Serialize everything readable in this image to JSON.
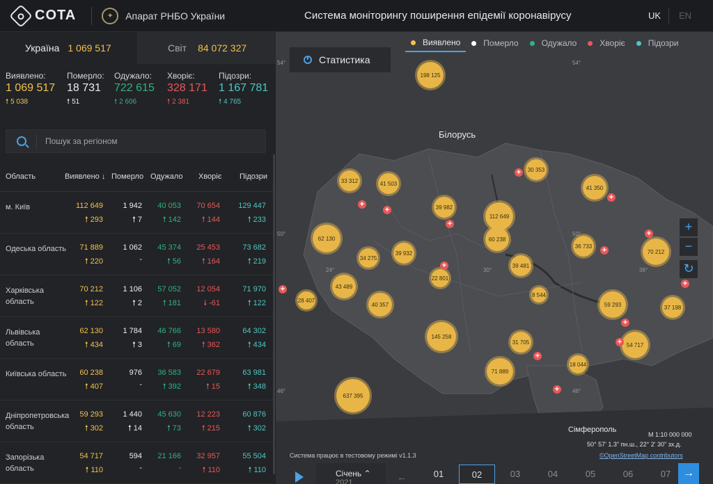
{
  "header": {
    "logo_text": "COTA",
    "org_name": "Апарат РНБО України",
    "system_title": "Система моніторингу поширення епідемії коронавірусу",
    "lang_uk": "UK",
    "lang_en": "EN"
  },
  "totals": {
    "ukraine_label": "Україна",
    "ukraine_value": "1 069 517",
    "world_label": "Світ",
    "world_value": "84 072 327"
  },
  "stats": [
    {
      "label": "Виявлено:",
      "value": "1 069 517",
      "delta": "5 038",
      "color": "yellow"
    },
    {
      "label": "Померло:",
      "value": "18 731",
      "delta": "51",
      "color": "white"
    },
    {
      "label": "Одужало:",
      "value": "722 615",
      "delta": "2 606",
      "color": "green"
    },
    {
      "label": "Хворіє:",
      "value": "328 171",
      "delta": "2 381",
      "color": "red"
    },
    {
      "label": "Підозри:",
      "value": "1 167 781",
      "delta": "4 765",
      "color": "cyan"
    }
  ],
  "search": {
    "placeholder": "Пошук за регіоном"
  },
  "table": {
    "headers": [
      "Область",
      "Виявлено ↓",
      "Померло",
      "Одужало",
      "Хворіє",
      "Підозри"
    ],
    "rows": [
      {
        "region": "м. Київ",
        "det": "112 649",
        "det_d": "293",
        "died": "1 942",
        "died_d": "7",
        "rec": "40 053",
        "rec_d": "142",
        "sick": "70 654",
        "sick_d": "144",
        "susp": "129 447",
        "susp_d": "233"
      },
      {
        "region": "Одеська область",
        "det": "71 889",
        "det_d": "220",
        "died": "1 062",
        "died_d": "-",
        "rec": "45 374",
        "rec_d": "56",
        "sick": "25 453",
        "sick_d": "164",
        "susp": "73 682",
        "susp_d": "219"
      },
      {
        "region": "Харківська область",
        "det": "70 212",
        "det_d": "122",
        "died": "1 106",
        "died_d": "2",
        "rec": "57 052",
        "rec_d": "181",
        "sick": "12 054",
        "sick_d": "-61",
        "susp": "71 970",
        "susp_d": "122"
      },
      {
        "region": "Львівська область",
        "det": "62 130",
        "det_d": "434",
        "died": "1 784",
        "died_d": "3",
        "rec": "46 766",
        "rec_d": "69",
        "sick": "13 580",
        "sick_d": "362",
        "susp": "64 302",
        "susp_d": "434"
      },
      {
        "region": "Київська область",
        "det": "60 238",
        "det_d": "407",
        "died": "976",
        "died_d": "-",
        "rec": "36 583",
        "rec_d": "392",
        "sick": "22 679",
        "sick_d": "15",
        "susp": "63 981",
        "susp_d": "348"
      },
      {
        "region": "Дніпропетровська область",
        "det": "59 293",
        "det_d": "302",
        "died": "1 440",
        "died_d": "14",
        "rec": "45 630",
        "rec_d": "73",
        "sick": "12 223",
        "sick_d": "215",
        "susp": "60 876",
        "susp_d": "302"
      },
      {
        "region": "Запорізька область",
        "det": "54 717",
        "det_d": "110",
        "died": "594",
        "died_d": "-",
        "rec": "21 166",
        "rec_d": "-",
        "sick": "32 957",
        "sick_d": "110",
        "susp": "55 504",
        "susp_d": "110"
      }
    ]
  },
  "map": {
    "stat_button": "Статистика",
    "legend": [
      "Виявлено",
      "Померло",
      "Одужало",
      "Хворіє",
      "Підозри"
    ],
    "legend_colors": [
      "#f2c14e",
      "#ffffff",
      "#2fb380",
      "#e85858",
      "#4cc7c2"
    ],
    "country_label": "Білорусь",
    "city_label": "Сімферополь",
    "lat_labels": [
      "54°",
      "54°",
      "50°",
      "50°",
      "46°",
      "46°",
      "24°",
      "30°",
      "36°"
    ],
    "bubbles": [
      "198 125",
      "33 312",
      "41 503",
      "30 353",
      "41 350",
      "39 982",
      "112 649",
      "60 238",
      "62 130",
      "34 275",
      "39 932",
      "36 733",
      "70 212",
      "39 481",
      "22 801",
      "43 489",
      "28 407",
      "40 357",
      "8 544",
      "59 293",
      "37 198",
      "145 258",
      "31 705",
      "54 717",
      "71 889",
      "18 044",
      "637 395"
    ],
    "zoom_in": "+",
    "zoom_out": "−",
    "refresh": "↻",
    "scale": "М 1:10 000 000",
    "coords": "50° 57' 1.3\" пн.ш., 22° 2' 30\" зх.д.",
    "osm": "©OpenStreetMap contributors",
    "test_mode": "Система працює в тестовому режимі v1.1.3"
  },
  "timeline": {
    "month": "Січень",
    "year": "2021",
    "days": [
      "01",
      "02",
      "03",
      "04",
      "05",
      "06",
      "07"
    ],
    "selected_day": "02"
  }
}
